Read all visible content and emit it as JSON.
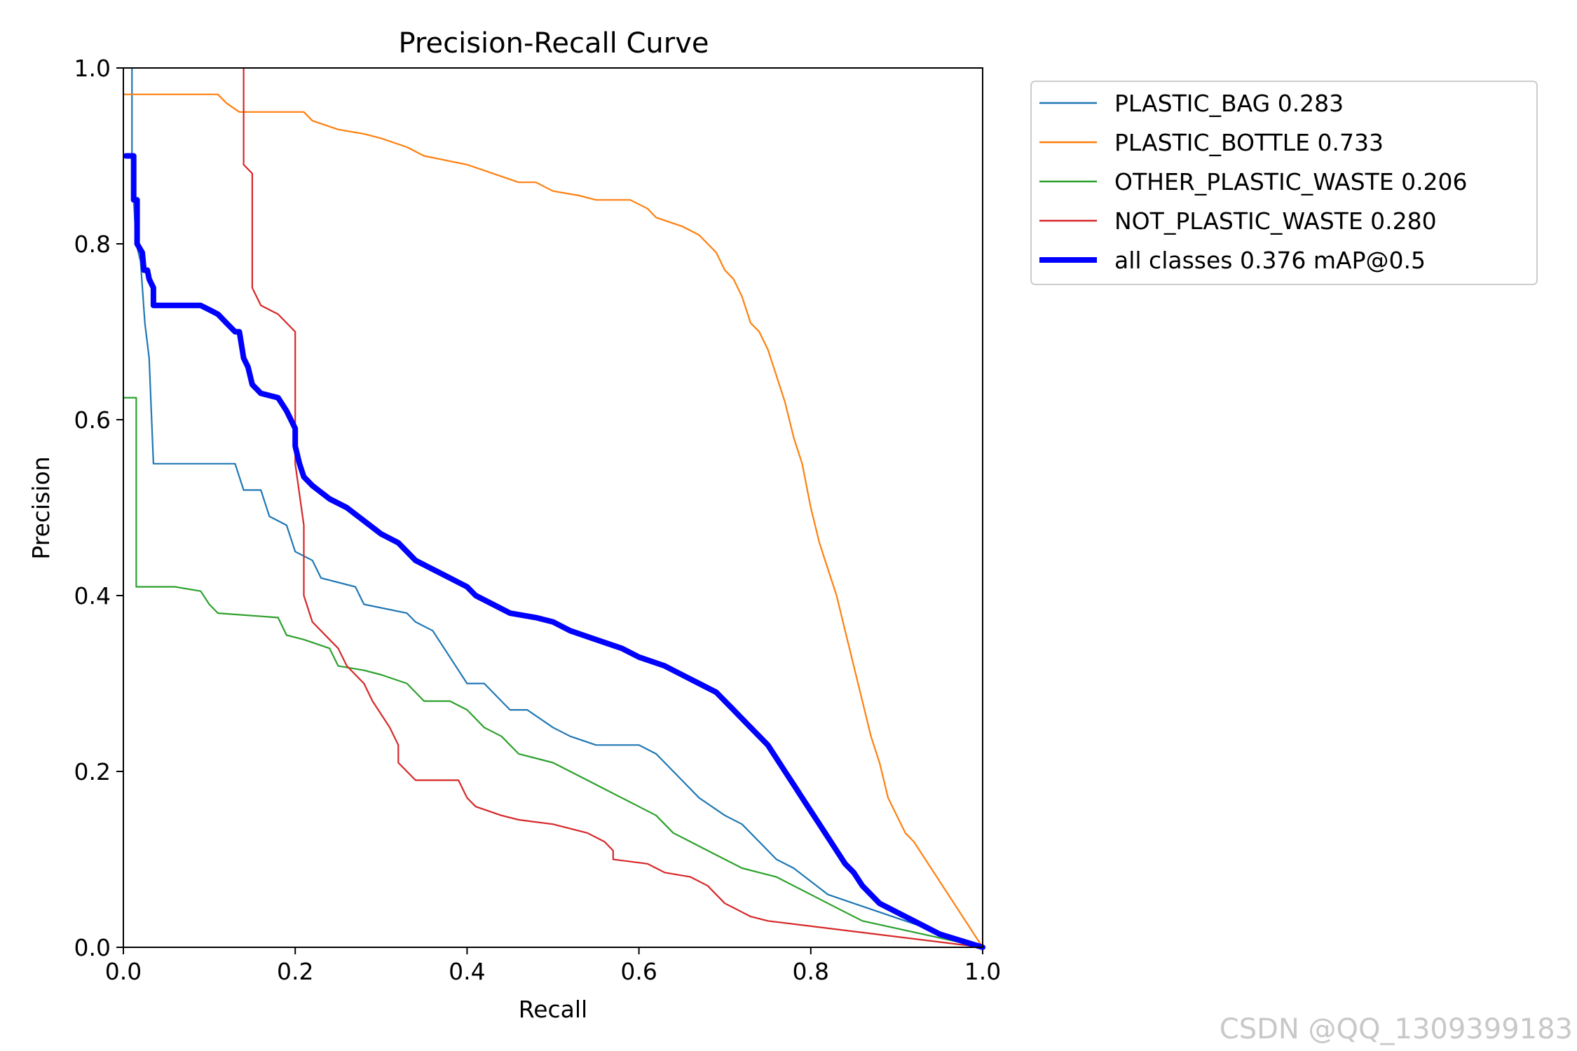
{
  "chart_data": {
    "type": "line",
    "title": "Precision-Recall Curve",
    "xlabel": "Recall",
    "ylabel": "Precision",
    "xlim": [
      0,
      1
    ],
    "ylim": [
      0,
      1
    ],
    "xticks": [
      0.0,
      0.2,
      0.4,
      0.6,
      0.8,
      1.0
    ],
    "yticks": [
      0.0,
      0.2,
      0.4,
      0.6,
      0.8,
      1.0
    ],
    "xtick_labels": [
      "0.0",
      "0.2",
      "0.4",
      "0.6",
      "0.8",
      "1.0"
    ],
    "ytick_labels": [
      "0.0",
      "0.2",
      "0.4",
      "0.6",
      "0.8",
      "1.0"
    ],
    "legend_position": "outside-top-right",
    "series": [
      {
        "name": "PLASTIC_BAG 0.283",
        "color": "#1f77b4",
        "bold": false,
        "points": [
          [
            0.01,
            1.0
          ],
          [
            0.01,
            0.9
          ],
          [
            0.012,
            0.85
          ],
          [
            0.015,
            0.8
          ],
          [
            0.02,
            0.78
          ],
          [
            0.025,
            0.71
          ],
          [
            0.03,
            0.67
          ],
          [
            0.035,
            0.55
          ],
          [
            0.13,
            0.55
          ],
          [
            0.14,
            0.52
          ],
          [
            0.16,
            0.52
          ],
          [
            0.17,
            0.49
          ],
          [
            0.19,
            0.48
          ],
          [
            0.2,
            0.45
          ],
          [
            0.22,
            0.44
          ],
          [
            0.23,
            0.42
          ],
          [
            0.27,
            0.41
          ],
          [
            0.28,
            0.39
          ],
          [
            0.33,
            0.38
          ],
          [
            0.34,
            0.37
          ],
          [
            0.36,
            0.36
          ],
          [
            0.38,
            0.33
          ],
          [
            0.4,
            0.3
          ],
          [
            0.42,
            0.3
          ],
          [
            0.44,
            0.28
          ],
          [
            0.45,
            0.27
          ],
          [
            0.47,
            0.27
          ],
          [
            0.5,
            0.25
          ],
          [
            0.52,
            0.24
          ],
          [
            0.55,
            0.23
          ],
          [
            0.6,
            0.23
          ],
          [
            0.62,
            0.22
          ],
          [
            0.65,
            0.19
          ],
          [
            0.67,
            0.17
          ],
          [
            0.7,
            0.15
          ],
          [
            0.72,
            0.14
          ],
          [
            0.74,
            0.12
          ],
          [
            0.76,
            0.1
          ],
          [
            0.78,
            0.09
          ],
          [
            0.8,
            0.075
          ],
          [
            0.82,
            0.06
          ],
          [
            0.85,
            0.05
          ],
          [
            0.88,
            0.04
          ],
          [
            1.0,
            0.0
          ]
        ]
      },
      {
        "name": "PLASTIC_BOTTLE 0.733",
        "color": "#ff7f0e",
        "bold": false,
        "points": [
          [
            0.0,
            0.97
          ],
          [
            0.11,
            0.97
          ],
          [
            0.12,
            0.96
          ],
          [
            0.135,
            0.95
          ],
          [
            0.21,
            0.95
          ],
          [
            0.22,
            0.94
          ],
          [
            0.25,
            0.93
          ],
          [
            0.28,
            0.925
          ],
          [
            0.3,
            0.92
          ],
          [
            0.33,
            0.91
          ],
          [
            0.35,
            0.9
          ],
          [
            0.4,
            0.89
          ],
          [
            0.43,
            0.88
          ],
          [
            0.46,
            0.87
          ],
          [
            0.48,
            0.87
          ],
          [
            0.5,
            0.86
          ],
          [
            0.53,
            0.855
          ],
          [
            0.55,
            0.85
          ],
          [
            0.59,
            0.85
          ],
          [
            0.61,
            0.84
          ],
          [
            0.62,
            0.83
          ],
          [
            0.65,
            0.82
          ],
          [
            0.67,
            0.81
          ],
          [
            0.68,
            0.8
          ],
          [
            0.69,
            0.79
          ],
          [
            0.7,
            0.77
          ],
          [
            0.71,
            0.76
          ],
          [
            0.72,
            0.74
          ],
          [
            0.73,
            0.71
          ],
          [
            0.74,
            0.7
          ],
          [
            0.75,
            0.68
          ],
          [
            0.76,
            0.65
          ],
          [
            0.77,
            0.62
          ],
          [
            0.78,
            0.58
          ],
          [
            0.79,
            0.55
          ],
          [
            0.8,
            0.5
          ],
          [
            0.81,
            0.46
          ],
          [
            0.82,
            0.43
          ],
          [
            0.83,
            0.4
          ],
          [
            0.84,
            0.36
          ],
          [
            0.85,
            0.32
          ],
          [
            0.86,
            0.28
          ],
          [
            0.87,
            0.24
          ],
          [
            0.88,
            0.21
          ],
          [
            0.89,
            0.17
          ],
          [
            0.9,
            0.15
          ],
          [
            0.91,
            0.13
          ],
          [
            0.92,
            0.12
          ],
          [
            1.0,
            0.0
          ]
        ]
      },
      {
        "name": "OTHER_PLASTIC_WASTE 0.206",
        "color": "#2ca02c",
        "bold": false,
        "points": [
          [
            0.0,
            0.625
          ],
          [
            0.015,
            0.625
          ],
          [
            0.015,
            0.41
          ],
          [
            0.06,
            0.41
          ],
          [
            0.09,
            0.405
          ],
          [
            0.1,
            0.39
          ],
          [
            0.11,
            0.38
          ],
          [
            0.18,
            0.375
          ],
          [
            0.19,
            0.355
          ],
          [
            0.21,
            0.35
          ],
          [
            0.24,
            0.34
          ],
          [
            0.25,
            0.32
          ],
          [
            0.28,
            0.315
          ],
          [
            0.3,
            0.31
          ],
          [
            0.33,
            0.3
          ],
          [
            0.35,
            0.28
          ],
          [
            0.38,
            0.28
          ],
          [
            0.4,
            0.27
          ],
          [
            0.42,
            0.25
          ],
          [
            0.44,
            0.24
          ],
          [
            0.46,
            0.22
          ],
          [
            0.5,
            0.21
          ],
          [
            0.52,
            0.2
          ],
          [
            0.54,
            0.19
          ],
          [
            0.56,
            0.18
          ],
          [
            0.58,
            0.17
          ],
          [
            0.6,
            0.16
          ],
          [
            0.62,
            0.15
          ],
          [
            0.64,
            0.13
          ],
          [
            0.66,
            0.12
          ],
          [
            0.68,
            0.11
          ],
          [
            0.7,
            0.1
          ],
          [
            0.72,
            0.09
          ],
          [
            0.74,
            0.085
          ],
          [
            0.76,
            0.08
          ],
          [
            0.78,
            0.07
          ],
          [
            0.8,
            0.06
          ],
          [
            0.82,
            0.05
          ],
          [
            0.84,
            0.04
          ],
          [
            0.86,
            0.03
          ],
          [
            1.0,
            0.0
          ]
        ]
      },
      {
        "name": "NOT_PLASTIC_WASTE 0.280",
        "color": "#d62728",
        "bold": false,
        "points": [
          [
            0.14,
            1.0
          ],
          [
            0.14,
            0.89
          ],
          [
            0.15,
            0.88
          ],
          [
            0.15,
            0.75
          ],
          [
            0.16,
            0.73
          ],
          [
            0.18,
            0.72
          ],
          [
            0.2,
            0.7
          ],
          [
            0.2,
            0.55
          ],
          [
            0.21,
            0.48
          ],
          [
            0.21,
            0.4
          ],
          [
            0.22,
            0.37
          ],
          [
            0.24,
            0.35
          ],
          [
            0.25,
            0.34
          ],
          [
            0.26,
            0.32
          ],
          [
            0.28,
            0.3
          ],
          [
            0.29,
            0.28
          ],
          [
            0.31,
            0.25
          ],
          [
            0.32,
            0.23
          ],
          [
            0.32,
            0.21
          ],
          [
            0.34,
            0.19
          ],
          [
            0.39,
            0.19
          ],
          [
            0.4,
            0.17
          ],
          [
            0.41,
            0.16
          ],
          [
            0.44,
            0.15
          ],
          [
            0.46,
            0.145
          ],
          [
            0.5,
            0.14
          ],
          [
            0.54,
            0.13
          ],
          [
            0.56,
            0.12
          ],
          [
            0.57,
            0.11
          ],
          [
            0.57,
            0.1
          ],
          [
            0.61,
            0.095
          ],
          [
            0.62,
            0.09
          ],
          [
            0.63,
            0.085
          ],
          [
            0.66,
            0.08
          ],
          [
            0.68,
            0.07
          ],
          [
            0.69,
            0.06
          ],
          [
            0.7,
            0.05
          ],
          [
            0.71,
            0.045
          ],
          [
            0.72,
            0.04
          ],
          [
            0.73,
            0.035
          ],
          [
            0.75,
            0.03
          ],
          [
            1.0,
            0.0
          ]
        ]
      },
      {
        "name": "all classes 0.376 mAP@0.5",
        "color": "#0000ff",
        "bold": true,
        "points": [
          [
            0.003,
            0.9
          ],
          [
            0.012,
            0.9
          ],
          [
            0.012,
            0.85
          ],
          [
            0.016,
            0.85
          ],
          [
            0.016,
            0.8
          ],
          [
            0.022,
            0.79
          ],
          [
            0.024,
            0.77
          ],
          [
            0.028,
            0.77
          ],
          [
            0.03,
            0.76
          ],
          [
            0.035,
            0.75
          ],
          [
            0.035,
            0.73
          ],
          [
            0.06,
            0.73
          ],
          [
            0.07,
            0.73
          ],
          [
            0.09,
            0.73
          ],
          [
            0.1,
            0.725
          ],
          [
            0.11,
            0.72
          ],
          [
            0.12,
            0.71
          ],
          [
            0.13,
            0.7
          ],
          [
            0.135,
            0.7
          ],
          [
            0.14,
            0.67
          ],
          [
            0.145,
            0.66
          ],
          [
            0.15,
            0.64
          ],
          [
            0.16,
            0.63
          ],
          [
            0.18,
            0.625
          ],
          [
            0.19,
            0.61
          ],
          [
            0.2,
            0.59
          ],
          [
            0.2,
            0.57
          ],
          [
            0.205,
            0.55
          ],
          [
            0.21,
            0.535
          ],
          [
            0.22,
            0.525
          ],
          [
            0.24,
            0.51
          ],
          [
            0.26,
            0.5
          ],
          [
            0.28,
            0.485
          ],
          [
            0.3,
            0.47
          ],
          [
            0.32,
            0.46
          ],
          [
            0.34,
            0.44
          ],
          [
            0.36,
            0.43
          ],
          [
            0.38,
            0.42
          ],
          [
            0.4,
            0.41
          ],
          [
            0.41,
            0.4
          ],
          [
            0.43,
            0.39
          ],
          [
            0.45,
            0.38
          ],
          [
            0.48,
            0.375
          ],
          [
            0.5,
            0.37
          ],
          [
            0.52,
            0.36
          ],
          [
            0.55,
            0.35
          ],
          [
            0.58,
            0.34
          ],
          [
            0.6,
            0.33
          ],
          [
            0.63,
            0.32
          ],
          [
            0.65,
            0.31
          ],
          [
            0.67,
            0.3
          ],
          [
            0.69,
            0.29
          ],
          [
            0.7,
            0.28
          ],
          [
            0.71,
            0.27
          ],
          [
            0.72,
            0.26
          ],
          [
            0.73,
            0.25
          ],
          [
            0.75,
            0.23
          ],
          [
            0.76,
            0.215
          ],
          [
            0.77,
            0.2
          ],
          [
            0.78,
            0.185
          ],
          [
            0.79,
            0.17
          ],
          [
            0.8,
            0.155
          ],
          [
            0.81,
            0.14
          ],
          [
            0.82,
            0.125
          ],
          [
            0.83,
            0.11
          ],
          [
            0.84,
            0.095
          ],
          [
            0.85,
            0.085
          ],
          [
            0.86,
            0.07
          ],
          [
            0.87,
            0.06
          ],
          [
            0.88,
            0.05
          ],
          [
            0.9,
            0.04
          ],
          [
            0.92,
            0.03
          ],
          [
            0.95,
            0.015
          ],
          [
            1.0,
            0.0
          ]
        ]
      }
    ]
  },
  "watermark": "CSDN @QQ_1309399183"
}
